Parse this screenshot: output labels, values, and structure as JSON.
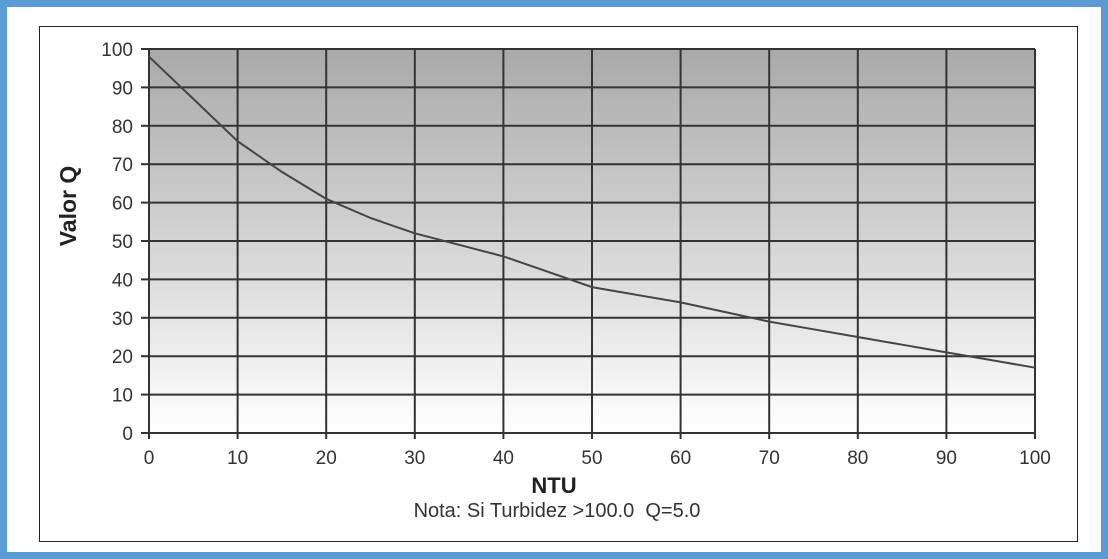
{
  "chart_data": {
    "type": "line",
    "xlabel": "NTU",
    "ylabel": "Valor Q",
    "note": "Nota: Si Turbidez >100.0  Q=5.0",
    "xlim": [
      0,
      100
    ],
    "ylim": [
      0,
      100
    ],
    "x_ticks": [
      "0",
      "10",
      "20",
      "30",
      "40",
      "50",
      "60",
      "70",
      "80",
      "90",
      "100"
    ],
    "y_ticks": [
      "0",
      "10",
      "20",
      "30",
      "40",
      "50",
      "60",
      "70",
      "80",
      "90",
      "100"
    ],
    "grid": true,
    "series": [
      {
        "x": [
          0,
          5,
          10,
          15,
          20,
          25,
          30,
          35,
          40,
          45,
          50,
          55,
          60,
          65,
          70,
          75,
          80,
          85,
          90,
          95,
          100
        ],
        "y": [
          98,
          87,
          76,
          68,
          61,
          56,
          52,
          49,
          46,
          42,
          38,
          36,
          34,
          31.5,
          29,
          27,
          25,
          23,
          21,
          19,
          17
        ]
      }
    ]
  }
}
